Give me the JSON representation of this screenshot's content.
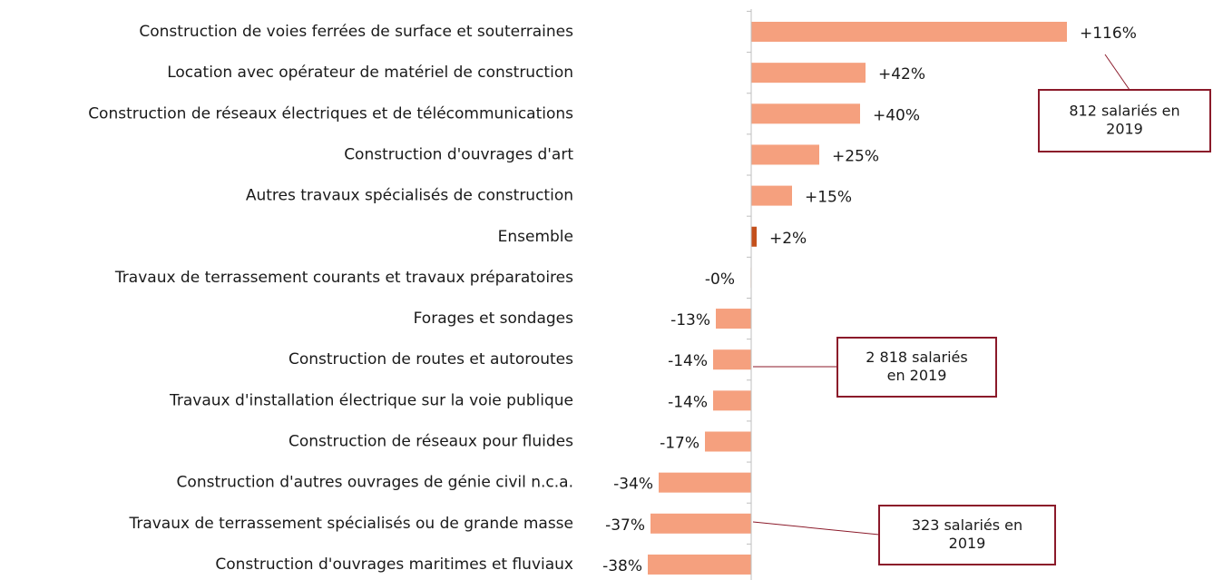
{
  "chart_data": {
    "type": "hbar",
    "categories": [
      "Construction de voies ferrées de surface et souterraines",
      "Location avec opérateur de matériel de construction",
      "Construction de réseaux électriques et de télécommunications",
      "Construction d'ouvrages d'art",
      "Autres travaux spécialisés de construction",
      "Ensemble",
      "Travaux de terrassement courants et travaux préparatoires",
      "Forages et sondages",
      "Construction de routes et autoroutes",
      "Travaux d'installation électrique sur la voie publique",
      "Construction de réseaux pour fluides",
      "Construction d'autres ouvrages de génie civil n.c.a.",
      "Travaux de terrassement spécialisés ou de grande masse",
      "Construction d'ouvrages maritimes et fluviaux"
    ],
    "values": [
      116,
      42,
      40,
      25,
      15,
      2,
      -0.2,
      -13,
      -14,
      -14,
      -17,
      -34,
      -37,
      -38
    ],
    "value_labels": [
      "+116%",
      "+42%",
      "+40%",
      "+25%",
      "+15%",
      "+2%",
      "-0%",
      "-13%",
      "-14%",
      "-14%",
      "-17%",
      "-34%",
      "-37%",
      "-38%"
    ],
    "colors": [
      "#f5a07e",
      "#f5a07e",
      "#f5a07e",
      "#f5a07e",
      "#f5a07e",
      "#c4501c",
      "#f5a07e",
      "#f5a07e",
      "#f5a07e",
      "#f5a07e",
      "#f5a07e",
      "#f5a07e",
      "#f5a07e",
      "#f5a07e"
    ],
    "xlim": [
      -40,
      120
    ],
    "annotations": [
      {
        "lines": [
          "812 salariés en",
          "2019"
        ]
      },
      {
        "lines": [
          "2 818 salariés",
          "en 2019"
        ]
      },
      {
        "lines": [
          "323 salariés en",
          "2019"
        ]
      }
    ]
  }
}
